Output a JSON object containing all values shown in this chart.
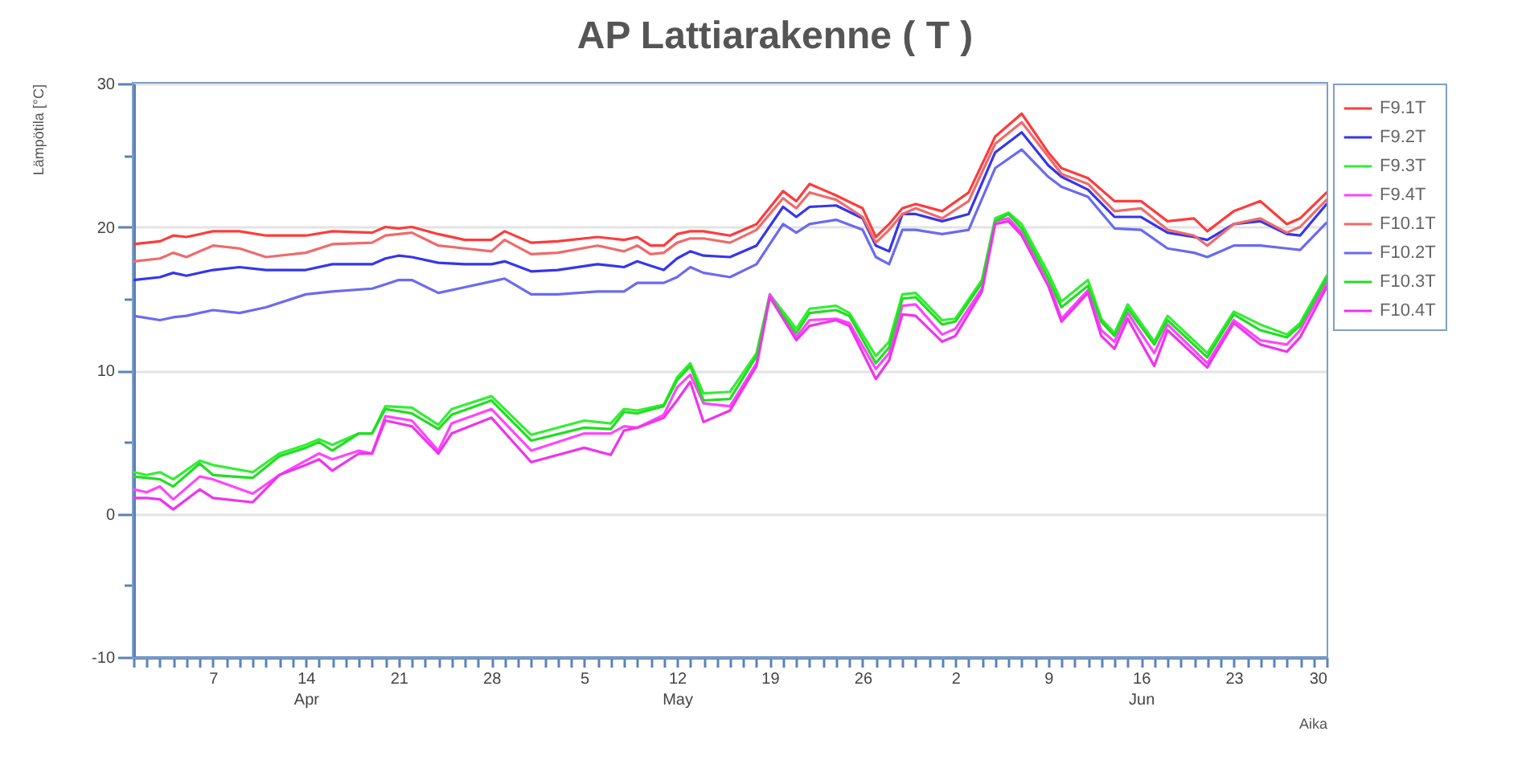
{
  "chart_data": {
    "type": "line",
    "title": "AP Lattiarakenne ( T )",
    "xlabel": "Aika",
    "ylabel": "Lämpötila [°C]",
    "x": [
      "--04-01",
      "--04-02",
      "--04-03",
      "--04-04",
      "--04-06",
      "--04-07",
      "--04-10",
      "--04-12",
      "--04-14",
      "--04-15",
      "--04-16",
      "--04-18",
      "--04-19",
      "--04-20",
      "--04-22",
      "--04-24",
      "--04-25",
      "--04-28",
      "--05-01",
      "--05-05",
      "--05-07",
      "--05-08",
      "--05-09",
      "--05-11",
      "--05-12",
      "--05-13",
      "--05-14",
      "--05-16",
      "--05-18",
      "--05-19",
      "--05-21",
      "--05-22",
      "--05-24",
      "--05-25",
      "--05-27",
      "--05-28",
      "--05-29",
      "--05-30",
      "--06-01",
      "--06-02",
      "--06-04",
      "--06-05",
      "--06-06",
      "--06-07",
      "--06-09",
      "--06-10",
      "--06-12",
      "--06-13",
      "--06-14",
      "--06-15",
      "--06-17",
      "--06-18",
      "--06-21",
      "--06-23",
      "--06-25",
      "--06-27",
      "--06-28",
      "--06-30"
    ],
    "series": [
      {
        "name": "F9.1T",
        "color": "#ff3b3b",
        "x": [
          "--04-01",
          "--04-03",
          "--04-04",
          "--04-05",
          "--04-07",
          "--04-09",
          "--04-11",
          "--04-14",
          "--04-16",
          "--04-19",
          "--04-20",
          "--04-21",
          "--04-22",
          "--04-24",
          "--04-26",
          "--04-28",
          "--04-29",
          "--05-01",
          "--05-03",
          "--05-06",
          "--05-08",
          "--05-09",
          "--05-10",
          "--05-11",
          "--05-12",
          "--05-13",
          "--05-14",
          "--05-16",
          "--05-18",
          "--05-20",
          "--05-21",
          "--05-22",
          "--05-24",
          "--05-26",
          "--05-27",
          "--05-28",
          "--05-29",
          "--05-30",
          "--06-01",
          "--06-03",
          "--06-05",
          "--06-07",
          "--06-09",
          "--06-10",
          "--06-12",
          "--06-14",
          "--06-16",
          "--06-18",
          "--06-20",
          "--06-21",
          "--06-23",
          "--06-25",
          "--06-27",
          "--06-28",
          "--06-30"
        ],
        "values": [
          18.8,
          19.0,
          19.4,
          19.3,
          19.7,
          19.7,
          19.4,
          19.4,
          19.7,
          19.6,
          20.0,
          19.9,
          20.0,
          19.5,
          19.1,
          19.1,
          19.7,
          18.9,
          19.0,
          19.3,
          19.1,
          19.3,
          18.7,
          18.7,
          19.5,
          19.7,
          19.7,
          19.4,
          20.2,
          22.5,
          21.8,
          23.0,
          22.2,
          21.3,
          19.3,
          20.2,
          21.3,
          21.6,
          21.1,
          22.4,
          26.3,
          27.9,
          25.2,
          24.1,
          23.4,
          21.8,
          21.8,
          20.4,
          20.6,
          19.7,
          21.1,
          21.8,
          20.2,
          20.6,
          22.4
        ]
      },
      {
        "name": "F9.2T",
        "color": "#3535ee",
        "x": [
          "--04-01",
          "--04-03",
          "--04-04",
          "--04-05",
          "--04-07",
          "--04-09",
          "--04-11",
          "--04-14",
          "--04-16",
          "--04-19",
          "--04-20",
          "--04-21",
          "--04-22",
          "--04-24",
          "--04-26",
          "--04-28",
          "--04-29",
          "--05-01",
          "--05-03",
          "--05-06",
          "--05-08",
          "--05-09",
          "--05-10",
          "--05-11",
          "--05-12",
          "--05-13",
          "--05-14",
          "--05-16",
          "--05-18",
          "--05-20",
          "--05-21",
          "--05-22",
          "--05-24",
          "--05-26",
          "--05-27",
          "--05-28",
          "--05-29",
          "--05-30",
          "--06-01",
          "--06-03",
          "--06-05",
          "--06-07",
          "--06-09",
          "--06-10",
          "--06-12",
          "--06-14",
          "--06-16",
          "--06-18",
          "--06-20",
          "--06-21",
          "--06-23",
          "--06-25",
          "--06-27",
          "--06-28",
          "--06-30"
        ],
        "values": [
          16.3,
          16.5,
          16.8,
          16.6,
          17.0,
          17.2,
          17.0,
          17.0,
          17.4,
          17.4,
          17.8,
          18.0,
          17.9,
          17.5,
          17.4,
          17.4,
          17.6,
          16.9,
          17.0,
          17.4,
          17.2,
          17.6,
          17.3,
          17.0,
          17.8,
          18.3,
          18.0,
          17.9,
          18.7,
          21.4,
          20.7,
          21.4,
          21.5,
          20.6,
          18.7,
          18.3,
          20.9,
          20.9,
          20.4,
          20.9,
          25.2,
          26.6,
          24.3,
          23.5,
          22.6,
          20.7,
          20.7,
          19.6,
          19.3,
          19.1,
          20.2,
          20.4,
          19.5,
          19.4,
          21.6
        ]
      },
      {
        "name": "F9.3T",
        "color": "#33ee33",
        "values": [
          2.9,
          2.7,
          2.9,
          2.4,
          3.7,
          3.4,
          2.9,
          4.2,
          4.8,
          5.2,
          4.8,
          5.6,
          5.6,
          7.5,
          7.4,
          6.2,
          7.3,
          8.2,
          5.5,
          6.5,
          6.3,
          7.3,
          7.2,
          7.6,
          9.5,
          10.5,
          8.4,
          8.5,
          11.2,
          15.3,
          12.9,
          14.3,
          14.5,
          14.0,
          11.0,
          12.0,
          15.3,
          15.4,
          13.5,
          13.6,
          16.3,
          20.6,
          21.0,
          20.2,
          16.8,
          14.8,
          16.3,
          13.6,
          12.6,
          14.6,
          12.0,
          13.8,
          11.2,
          14.1,
          13.2,
          12.5,
          13.3,
          16.6
        ]
      },
      {
        "name": "F9.4T",
        "color": "#ff44ff",
        "values": [
          1.7,
          1.5,
          1.9,
          1.0,
          2.6,
          2.4,
          1.4,
          2.7,
          3.7,
          4.2,
          3.8,
          4.4,
          4.2,
          6.8,
          6.5,
          4.4,
          6.3,
          7.3,
          4.4,
          5.6,
          5.6,
          6.1,
          6.0,
          6.9,
          8.8,
          9.7,
          7.7,
          7.5,
          10.5,
          15.3,
          12.3,
          13.5,
          13.6,
          13.3,
          10.1,
          11.2,
          14.5,
          14.6,
          12.5,
          12.9,
          15.7,
          20.4,
          20.6,
          19.6,
          16.3,
          13.6,
          15.6,
          12.8,
          12.0,
          14.0,
          11.2,
          13.2,
          10.5,
          13.5,
          12.1,
          11.8,
          12.8,
          16.1
        ]
      },
      {
        "name": "F10.1T",
        "color": "#f06a6a",
        "x": [
          "--04-01",
          "--04-03",
          "--04-04",
          "--04-05",
          "--04-07",
          "--04-09",
          "--04-11",
          "--04-14",
          "--04-16",
          "--04-19",
          "--04-20",
          "--04-21",
          "--04-22",
          "--04-24",
          "--04-26",
          "--04-28",
          "--04-29",
          "--05-01",
          "--05-03",
          "--05-06",
          "--05-08",
          "--05-09",
          "--05-10",
          "--05-11",
          "--05-12",
          "--05-13",
          "--05-14",
          "--05-16",
          "--05-18",
          "--05-20",
          "--05-21",
          "--05-22",
          "--05-24",
          "--05-26",
          "--05-27",
          "--05-28",
          "--05-29",
          "--05-30",
          "--06-01",
          "--06-03",
          "--06-05",
          "--06-07",
          "--06-09",
          "--06-10",
          "--06-12",
          "--06-14",
          "--06-16",
          "--06-18",
          "--06-20",
          "--06-21",
          "--06-23",
          "--06-25",
          "--06-27",
          "--06-28",
          "--06-30"
        ],
        "values": [
          17.6,
          17.8,
          18.2,
          17.9,
          18.7,
          18.5,
          17.9,
          18.2,
          18.8,
          18.9,
          19.4,
          19.5,
          19.6,
          18.7,
          18.5,
          18.3,
          19.1,
          18.1,
          18.2,
          18.7,
          18.3,
          18.7,
          18.1,
          18.2,
          18.9,
          19.2,
          19.2,
          18.9,
          19.8,
          22.0,
          21.3,
          22.4,
          21.9,
          20.7,
          18.9,
          19.8,
          20.9,
          21.3,
          20.6,
          21.8,
          25.8,
          27.3,
          24.9,
          23.7,
          23.0,
          21.1,
          21.3,
          19.8,
          19.4,
          18.7,
          20.2,
          20.6,
          19.6,
          20.0,
          21.9
        ]
      },
      {
        "name": "F10.2T",
        "color": "#6a6af2",
        "x": [
          "--04-01",
          "--04-03",
          "--04-04",
          "--04-05",
          "--04-07",
          "--04-09",
          "--04-11",
          "--04-14",
          "--04-16",
          "--04-19",
          "--04-20",
          "--04-21",
          "--04-22",
          "--04-24",
          "--04-26",
          "--04-28",
          "--04-29",
          "--05-01",
          "--05-03",
          "--05-06",
          "--05-08",
          "--05-09",
          "--05-10",
          "--05-11",
          "--05-12",
          "--05-13",
          "--05-14",
          "--05-16",
          "--05-18",
          "--05-20",
          "--05-21",
          "--05-22",
          "--05-24",
          "--05-26",
          "--05-27",
          "--05-28",
          "--05-29",
          "--05-30",
          "--06-01",
          "--06-03",
          "--06-05",
          "--06-07",
          "--06-09",
          "--06-10",
          "--06-12",
          "--06-14",
          "--06-16",
          "--06-18",
          "--06-20",
          "--06-21",
          "--06-23",
          "--06-25",
          "--06-27",
          "--06-28",
          "--06-30"
        ],
        "values": [
          13.8,
          13.5,
          13.7,
          13.8,
          14.2,
          14.0,
          14.4,
          15.3,
          15.5,
          15.7,
          16.0,
          16.3,
          16.3,
          15.4,
          15.8,
          16.2,
          16.4,
          15.3,
          15.3,
          15.5,
          15.5,
          16.1,
          16.1,
          16.1,
          16.5,
          17.2,
          16.8,
          16.5,
          17.4,
          20.2,
          19.6,
          20.2,
          20.5,
          19.8,
          17.9,
          17.4,
          19.8,
          19.8,
          19.5,
          19.8,
          24.1,
          25.4,
          23.5,
          22.8,
          22.1,
          19.9,
          19.8,
          18.5,
          18.2,
          17.9,
          18.7,
          18.7,
          18.5,
          18.4,
          20.3
        ]
      },
      {
        "name": "F10.3T",
        "color": "#22dd22",
        "values": [
          2.6,
          2.5,
          2.4,
          1.9,
          3.5,
          2.7,
          2.5,
          4.0,
          4.6,
          5.0,
          4.4,
          5.6,
          5.6,
          7.3,
          7.0,
          5.9,
          6.9,
          7.9,
          5.1,
          6.0,
          5.9,
          7.1,
          7.0,
          7.5,
          9.3,
          10.3,
          7.9,
          8.0,
          11.0,
          15.1,
          12.6,
          14.0,
          14.2,
          13.8,
          10.5,
          11.6,
          15.0,
          15.1,
          13.2,
          13.4,
          16.1,
          20.4,
          20.9,
          19.9,
          16.4,
          14.4,
          15.9,
          13.4,
          12.4,
          14.3,
          11.8,
          13.5,
          10.9,
          13.9,
          12.8,
          12.3,
          13.1,
          16.4
        ]
      },
      {
        "name": "F10.4T",
        "color": "#ee33ee",
        "values": [
          1.1,
          1.1,
          1.0,
          0.3,
          1.7,
          1.1,
          0.8,
          2.7,
          3.4,
          3.8,
          3.0,
          4.2,
          4.2,
          6.5,
          6.1,
          4.2,
          5.6,
          6.7,
          3.6,
          4.6,
          4.1,
          5.8,
          6.0,
          6.7,
          7.9,
          9.2,
          6.4,
          7.2,
          10.3,
          15.1,
          12.1,
          13.1,
          13.5,
          13.1,
          9.4,
          10.7,
          13.9,
          13.8,
          12.0,
          12.4,
          15.5,
          20.2,
          20.4,
          19.4,
          15.9,
          13.4,
          15.4,
          12.4,
          11.5,
          13.6,
          10.3,
          12.8,
          10.2,
          13.3,
          11.8,
          11.3,
          12.3,
          15.8
        ]
      }
    ],
    "xlim": [
      "--04-01",
      "--06-30"
    ],
    "xticks": [
      {
        "value": "--04-01",
        "label": null
      },
      {
        "value": "--04-02",
        "label": null
      },
      {
        "value": "--04-03",
        "label": null
      },
      {
        "value": "--04-04",
        "label": null
      },
      {
        "value": "--04-05",
        "label": null
      },
      {
        "value": "--04-06",
        "label": null
      },
      {
        "value": "--04-07",
        "label": "7"
      },
      {
        "value": "--04-08",
        "label": null
      },
      {
        "value": "--04-09",
        "label": null
      },
      {
        "value": "--04-10",
        "label": null
      },
      {
        "value": "--04-11",
        "label": null
      },
      {
        "value": "--04-12",
        "label": null
      },
      {
        "value": "--04-13",
        "label": null
      },
      {
        "value": "--04-14",
        "label": "14\nApr"
      },
      {
        "value": "--04-15",
        "label": null
      },
      {
        "value": "--04-16",
        "label": null
      },
      {
        "value": "--04-17",
        "label": null
      },
      {
        "value": "--04-18",
        "label": null
      },
      {
        "value": "--04-19",
        "label": null
      },
      {
        "value": "--04-20",
        "label": null
      },
      {
        "value": "--04-21",
        "label": "21"
      },
      {
        "value": "--04-22",
        "label": null
      },
      {
        "value": "--04-23",
        "label": null
      },
      {
        "value": "--04-24",
        "label": null
      },
      {
        "value": "--04-25",
        "label": null
      },
      {
        "value": "--04-26",
        "label": null
      },
      {
        "value": "--04-27",
        "label": null
      },
      {
        "value": "--04-28",
        "label": "28"
      },
      {
        "value": "--04-29",
        "label": null
      },
      {
        "value": "--04-30",
        "label": null
      },
      {
        "value": "--05-01",
        "label": null
      },
      {
        "value": "--05-02",
        "label": null
      },
      {
        "value": "--05-03",
        "label": null
      },
      {
        "value": "--05-04",
        "label": null
      },
      {
        "value": "--05-05",
        "label": "5"
      },
      {
        "value": "--05-06",
        "label": null
      },
      {
        "value": "--05-07",
        "label": null
      },
      {
        "value": "--05-08",
        "label": null
      },
      {
        "value": "--05-09",
        "label": null
      },
      {
        "value": "--05-10",
        "label": null
      },
      {
        "value": "--05-11",
        "label": null
      },
      {
        "value": "--05-12",
        "label": "12\nMay"
      },
      {
        "value": "--05-13",
        "label": null
      },
      {
        "value": "--05-14",
        "label": null
      },
      {
        "value": "--05-15",
        "label": null
      },
      {
        "value": "--05-16",
        "label": null
      },
      {
        "value": "--05-17",
        "label": null
      },
      {
        "value": "--05-18",
        "label": null
      },
      {
        "value": "--05-19",
        "label": "19"
      },
      {
        "value": "--05-20",
        "label": null
      },
      {
        "value": "--05-21",
        "label": null
      },
      {
        "value": "--05-22",
        "label": null
      },
      {
        "value": "--05-23",
        "label": null
      },
      {
        "value": "--05-24",
        "label": null
      },
      {
        "value": "--05-25",
        "label": null
      },
      {
        "value": "--05-26",
        "label": "26"
      },
      {
        "value": "--05-27",
        "label": null
      },
      {
        "value": "--05-28",
        "label": null
      },
      {
        "value": "--05-29",
        "label": null
      },
      {
        "value": "--05-30",
        "label": null
      },
      {
        "value": "--05-31",
        "label": null
      },
      {
        "value": "--06-01",
        "label": null
      },
      {
        "value": "--06-02",
        "label": "2"
      },
      {
        "value": "--06-03",
        "label": null
      },
      {
        "value": "--06-04",
        "label": null
      },
      {
        "value": "--06-05",
        "label": null
      },
      {
        "value": "--06-06",
        "label": null
      },
      {
        "value": "--06-07",
        "label": null
      },
      {
        "value": "--06-08",
        "label": null
      },
      {
        "value": "--06-09",
        "label": "9"
      },
      {
        "value": "--06-10",
        "label": null
      },
      {
        "value": "--06-11",
        "label": null
      },
      {
        "value": "--06-12",
        "label": null
      },
      {
        "value": "--06-13",
        "label": null
      },
      {
        "value": "--06-14",
        "label": null
      },
      {
        "value": "--06-15",
        "label": null
      },
      {
        "value": "--06-16",
        "label": "16\nJun"
      },
      {
        "value": "--06-17",
        "label": null
      },
      {
        "value": "--06-18",
        "label": null
      },
      {
        "value": "--06-19",
        "label": null
      },
      {
        "value": "--06-20",
        "label": null
      },
      {
        "value": "--06-21",
        "label": null
      },
      {
        "value": "--06-22",
        "label": null
      },
      {
        "value": "--06-23",
        "label": "23"
      },
      {
        "value": "--06-24",
        "label": null
      },
      {
        "value": "--06-25",
        "label": null
      },
      {
        "value": "--06-26",
        "label": null
      },
      {
        "value": "--06-27",
        "label": null
      },
      {
        "value": "--06-28",
        "label": null
      },
      {
        "value": "--06-29",
        "label": null
      },
      {
        "value": "--06-30",
        "label": "30"
      }
    ],
    "ylim": [
      -10,
      30
    ],
    "yticks": [
      -10,
      {
        "value": -5,
        "label": null
      },
      0,
      {
        "value": 5,
        "label": null
      },
      10,
      {
        "value": 15,
        "label": null
      },
      20,
      {
        "value": 25,
        "label": null
      },
      30
    ],
    "grid": true,
    "legend": "right"
  }
}
